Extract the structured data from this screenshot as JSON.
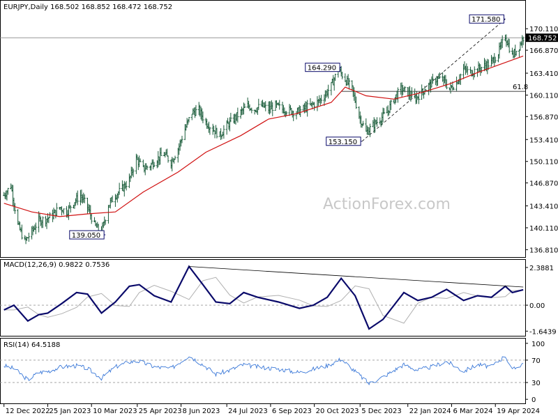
{
  "chart_data": {
    "type": "candlestick",
    "symbol_header": "EURJPY,Daily  168.502 168.852 168.472 168.752",
    "watermark": "ActionForex.com",
    "last_price_label": "168.752",
    "price_ticks": [
      "170.110",
      "166.870",
      "163.410",
      "160.110",
      "156.870",
      "153.410",
      "150.110",
      "146.870",
      "143.410",
      "140.110",
      "136.810"
    ],
    "price_ylim": [
      135.8,
      173.6
    ],
    "annotations": [
      {
        "label": "171.580",
        "x_date": "2024-04-29",
        "y": 171.58
      },
      {
        "label": "164.290",
        "x_date": "2023-11-16",
        "y": 164.29
      },
      {
        "label": "153.150",
        "x_date": "2023-12-07",
        "y": 153.15
      },
      {
        "label": "139.050",
        "x_date": "2023-03-24",
        "y": 139.05
      }
    ],
    "fib_label": "61.8",
    "fib_level": 160.67,
    "horizontal_price_line": 168.752,
    "trendline": [
      [
        "2023-12-07",
        153.15
      ],
      [
        "2024-04-29",
        171.58
      ]
    ],
    "ohlc_path": [
      [
        "2022-12-12",
        145.0
      ],
      [
        "2022-12-19",
        146.5
      ],
      [
        "2022-12-26",
        140.5
      ],
      [
        "2023-01-02",
        138.0
      ],
      [
        "2023-01-09",
        139.5
      ],
      [
        "2023-01-16",
        141.2
      ],
      [
        "2023-01-23",
        141.4
      ],
      [
        "2023-01-30",
        142.0
      ],
      [
        "2023-02-06",
        143.2
      ],
      [
        "2023-02-13",
        142.5
      ],
      [
        "2023-02-20",
        144.0
      ],
      [
        "2023-02-27",
        145.0
      ],
      [
        "2023-03-06",
        143.2
      ],
      [
        "2023-03-13",
        140.5
      ],
      [
        "2023-03-20",
        139.3
      ],
      [
        "2023-03-27",
        143.5
      ],
      [
        "2023-04-03",
        145.0
      ],
      [
        "2023-04-10",
        146.0
      ],
      [
        "2023-04-17",
        147.3
      ],
      [
        "2023-04-24",
        150.5
      ],
      [
        "2023-05-01",
        149.0
      ],
      [
        "2023-05-08",
        149.5
      ],
      [
        "2023-05-15",
        150.5
      ],
      [
        "2023-05-22",
        151.2
      ],
      [
        "2023-05-29",
        150.0
      ],
      [
        "2023-06-05",
        152.0
      ],
      [
        "2023-06-12",
        155.0
      ],
      [
        "2023-06-19",
        157.5
      ],
      [
        "2023-06-26",
        157.8
      ],
      [
        "2023-07-03",
        156.0
      ],
      [
        "2023-07-10",
        155.0
      ],
      [
        "2023-07-17",
        154.0
      ],
      [
        "2023-07-24",
        155.5
      ],
      [
        "2023-07-31",
        156.5
      ],
      [
        "2023-08-07",
        157.5
      ],
      [
        "2023-08-14",
        158.5
      ],
      [
        "2023-08-21",
        158.0
      ],
      [
        "2023-08-28",
        158.5
      ],
      [
        "2023-09-04",
        158.0
      ],
      [
        "2023-09-11",
        158.5
      ],
      [
        "2023-09-18",
        158.0
      ],
      [
        "2023-09-25",
        157.8
      ],
      [
        "2023-10-02",
        157.5
      ],
      [
        "2023-10-09",
        158.0
      ],
      [
        "2023-10-16",
        158.5
      ],
      [
        "2023-10-23",
        159.0
      ],
      [
        "2023-10-30",
        160.0
      ],
      [
        "2023-11-06",
        161.5
      ],
      [
        "2023-11-13",
        164.0
      ],
      [
        "2023-11-20",
        162.5
      ],
      [
        "2023-11-27",
        161.0
      ],
      [
        "2023-12-04",
        157.0
      ],
      [
        "2023-12-11",
        154.5
      ],
      [
        "2023-12-18",
        155.5
      ],
      [
        "2023-12-25",
        156.5
      ],
      [
        "2024-01-01",
        157.5
      ],
      [
        "2024-01-08",
        159.5
      ],
      [
        "2024-01-15",
        161.0
      ],
      [
        "2024-01-22",
        160.5
      ],
      [
        "2024-01-29",
        159.5
      ],
      [
        "2024-02-05",
        160.5
      ],
      [
        "2024-02-12",
        161.5
      ],
      [
        "2024-02-19",
        162.5
      ],
      [
        "2024-02-26",
        162.5
      ],
      [
        "2024-03-04",
        161.0
      ],
      [
        "2024-03-11",
        162.0
      ],
      [
        "2024-03-18",
        164.0
      ],
      [
        "2024-03-25",
        163.5
      ],
      [
        "2024-04-01",
        164.0
      ],
      [
        "2024-04-08",
        164.5
      ],
      [
        "2024-04-15",
        165.0
      ],
      [
        "2024-04-22",
        166.5
      ],
      [
        "2024-04-29",
        169.0
      ],
      [
        "2024-05-06",
        166.0
      ],
      [
        "2024-05-13",
        167.5
      ],
      [
        "2024-05-17",
        168.75
      ]
    ],
    "ma_path": [
      [
        "2022-12-12",
        143.8
      ],
      [
        "2023-01-09",
        142.5
      ],
      [
        "2023-02-06",
        141.8
      ],
      [
        "2023-03-06",
        142.2
      ],
      [
        "2023-04-03",
        142.5
      ],
      [
        "2023-05-01",
        145.5
      ],
      [
        "2023-06-05",
        148.5
      ],
      [
        "2023-07-03",
        151.5
      ],
      [
        "2023-08-07",
        154.0
      ],
      [
        "2023-09-04",
        156.5
      ],
      [
        "2023-10-02",
        157.3
      ],
      [
        "2023-11-06",
        159.0
      ],
      [
        "2023-11-20",
        161.3
      ],
      [
        "2023-12-11",
        160.0
      ],
      [
        "2024-01-08",
        159.5
      ],
      [
        "2024-02-05",
        160.5
      ],
      [
        "2024-03-04",
        161.8
      ],
      [
        "2024-04-01",
        163.5
      ],
      [
        "2024-05-17",
        166.0
      ]
    ],
    "macd": {
      "label": "MACD(12,26,9) 0.9822 0.7536",
      "ticks": [
        "2.3881",
        "0.00",
        "-1.6439"
      ],
      "ylim": [
        -1.85,
        2.65
      ],
      "trendline": [
        [
          "2023-06-16",
          2.45
        ],
        [
          "2024-05-17",
          1.15
        ]
      ],
      "macd_path": [
        [
          "2022-12-12",
          -0.3
        ],
        [
          "2022-12-22",
          0.0
        ],
        [
          "2023-01-05",
          -1.0
        ],
        [
          "2023-01-16",
          -0.6
        ],
        [
          "2023-01-25",
          -0.5
        ],
        [
          "2023-02-08",
          0.1
        ],
        [
          "2023-02-23",
          0.8
        ],
        [
          "2023-03-06",
          0.7
        ],
        [
          "2023-03-20",
          -0.5
        ],
        [
          "2023-04-03",
          0.2
        ],
        [
          "2023-04-17",
          1.2
        ],
        [
          "2023-04-27",
          1.3
        ],
        [
          "2023-05-12",
          0.6
        ],
        [
          "2023-05-29",
          0.2
        ],
        [
          "2023-06-16",
          2.45
        ],
        [
          "2023-06-30",
          1.3
        ],
        [
          "2023-07-13",
          0.2
        ],
        [
          "2023-07-27",
          0.1
        ],
        [
          "2023-08-10",
          0.8
        ],
        [
          "2023-08-24",
          0.5
        ],
        [
          "2023-09-14",
          0.2
        ],
        [
          "2023-10-05",
          -0.2
        ],
        [
          "2023-10-19",
          0.0
        ],
        [
          "2023-11-02",
          0.5
        ],
        [
          "2023-11-16",
          1.7
        ],
        [
          "2023-11-30",
          0.6
        ],
        [
          "2023-12-14",
          -1.5
        ],
        [
          "2023-12-28",
          -0.9
        ],
        [
          "2024-01-18",
          0.8
        ],
        [
          "2024-02-01",
          0.3
        ],
        [
          "2024-02-15",
          0.5
        ],
        [
          "2024-03-01",
          1.0
        ],
        [
          "2024-03-18",
          0.3
        ],
        [
          "2024-04-01",
          0.6
        ],
        [
          "2024-04-15",
          0.5
        ],
        [
          "2024-04-29",
          1.2
        ],
        [
          "2024-05-06",
          0.8
        ],
        [
          "2024-05-17",
          0.98
        ]
      ]
    },
    "rsi": {
      "label": "RSI(14) 64.5188",
      "ticks": [
        "100",
        "70",
        "30",
        "0"
      ],
      "ylim": [
        -6,
        106
      ],
      "levels": [
        70,
        30
      ],
      "rsi_path": [
        [
          "2022-12-12",
          60
        ],
        [
          "2022-12-22",
          55
        ],
        [
          "2023-01-05",
          35
        ],
        [
          "2023-01-16",
          48
        ],
        [
          "2023-01-25",
          50
        ],
        [
          "2023-02-08",
          58
        ],
        [
          "2023-02-23",
          60
        ],
        [
          "2023-03-06",
          55
        ],
        [
          "2023-03-20",
          38
        ],
        [
          "2023-04-03",
          58
        ],
        [
          "2023-04-17",
          67
        ],
        [
          "2023-04-27",
          68
        ],
        [
          "2023-05-12",
          58
        ],
        [
          "2023-05-29",
          55
        ],
        [
          "2023-06-16",
          78
        ],
        [
          "2023-06-30",
          62
        ],
        [
          "2023-07-13",
          45
        ],
        [
          "2023-07-27",
          52
        ],
        [
          "2023-08-10",
          62
        ],
        [
          "2023-08-24",
          58
        ],
        [
          "2023-09-14",
          54
        ],
        [
          "2023-10-05",
          48
        ],
        [
          "2023-10-19",
          54
        ],
        [
          "2023-11-02",
          60
        ],
        [
          "2023-11-16",
          72
        ],
        [
          "2023-11-30",
          50
        ],
        [
          "2023-12-14",
          28
        ],
        [
          "2023-12-28",
          40
        ],
        [
          "2024-01-18",
          62
        ],
        [
          "2024-02-01",
          52
        ],
        [
          "2024-02-15",
          58
        ],
        [
          "2024-03-01",
          68
        ],
        [
          "2024-03-18",
          50
        ],
        [
          "2024-04-01",
          62
        ],
        [
          "2024-04-15",
          58
        ],
        [
          "2024-04-29",
          78
        ],
        [
          "2024-05-06",
          52
        ],
        [
          "2024-05-17",
          64.5
        ]
      ]
    },
    "x_tick_labels": [
      [
        "2022-12-12",
        "12 Dec 2022"
      ],
      [
        "2023-01-25",
        "25 Jan 2023"
      ],
      [
        "2023-03-10",
        "10 Mar 2023"
      ],
      [
        "2023-04-25",
        "25 Apr 2023"
      ],
      [
        "2023-06-08",
        "8 Jun 2023"
      ],
      [
        "2023-07-24",
        "24 Jul 2023"
      ],
      [
        "2023-09-06",
        "6 Sep 2023"
      ],
      [
        "2023-10-20",
        "20 Oct 2023"
      ],
      [
        "2023-12-05",
        "5 Dec 2023"
      ],
      [
        "2024-01-22",
        "22 Jan 2024"
      ],
      [
        "2024-03-06",
        "6 Mar 2024"
      ],
      [
        "2024-04-19",
        "19 Apr 2024"
      ]
    ],
    "x_domain": [
      "2022-12-08",
      "2024-05-19"
    ],
    "colors": {
      "candles": "#1a5c3a",
      "ma": "#d01010",
      "macd": "#0a0a6a",
      "macd_signal": "#b0b0b0",
      "rsi": "#3a78d8",
      "annotation": "#0a0a6a",
      "grid": "#9a9a9a"
    }
  }
}
